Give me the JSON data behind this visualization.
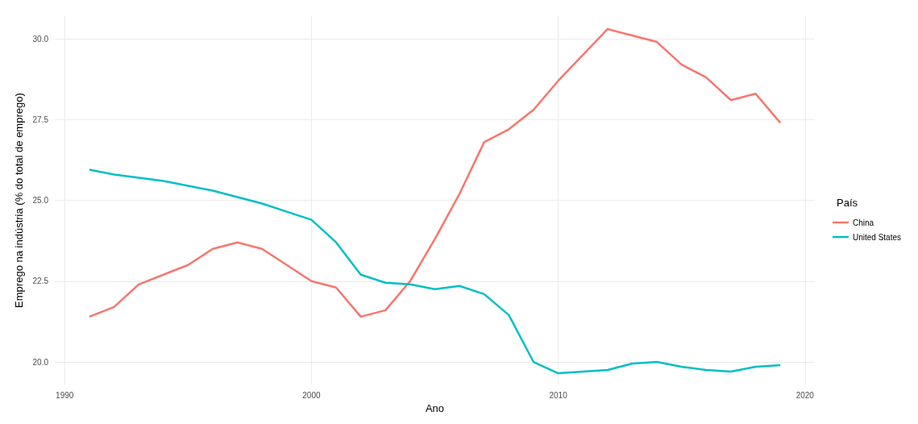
{
  "chart_data": {
    "type": "line",
    "xlabel": "Ano",
    "ylabel": "Emprego na indústria (% do total de emprego)",
    "legend_title": "País",
    "legend": "right",
    "grid": true,
    "line_style": "solid",
    "marker": "none",
    "x": [
      1991,
      1992,
      1993,
      1994,
      1995,
      1996,
      1997,
      1998,
      1999,
      2000,
      2001,
      2002,
      2003,
      2004,
      2005,
      2006,
      2007,
      2008,
      2009,
      2010,
      2011,
      2012,
      2013,
      2014,
      2015,
      2016,
      2017,
      2018,
      2019
    ],
    "xlim": [
      1989.6,
      2020.4
    ],
    "xticks": [
      1990,
      2000,
      2010,
      2020
    ],
    "ylim": [
      19.3,
      30.7
    ],
    "yticks": [
      {
        "value": 20,
        "label": "20.0"
      },
      {
        "value": 22.5,
        "label": "22.5"
      },
      {
        "value": 25,
        "label": "25.0"
      },
      {
        "value": 27.5,
        "label": "27.5"
      },
      {
        "value": 30,
        "label": "30.0"
      }
    ],
    "series": [
      {
        "name": "China",
        "color": "#f8766d",
        "values": [
          21.4,
          21.7,
          22.4,
          22.7,
          23.0,
          23.5,
          23.7,
          23.5,
          23.0,
          22.5,
          22.3,
          21.4,
          21.6,
          22.5,
          23.8,
          25.2,
          26.8,
          27.2,
          27.8,
          28.7,
          29.5,
          30.3,
          30.1,
          29.9,
          29.2,
          28.8,
          28.1,
          28.3,
          27.4
        ]
      },
      {
        "name": "United States",
        "color": "#00bfc4",
        "values": [
          25.95,
          25.8,
          25.7,
          25.6,
          25.45,
          25.3,
          25.1,
          24.9,
          24.65,
          24.4,
          23.7,
          22.7,
          22.45,
          22.4,
          22.25,
          22.35,
          22.1,
          21.45,
          20.0,
          19.65,
          19.7,
          19.75,
          19.95,
          20.0,
          19.85,
          19.75,
          19.7,
          19.85,
          19.9
        ]
      }
    ]
  }
}
